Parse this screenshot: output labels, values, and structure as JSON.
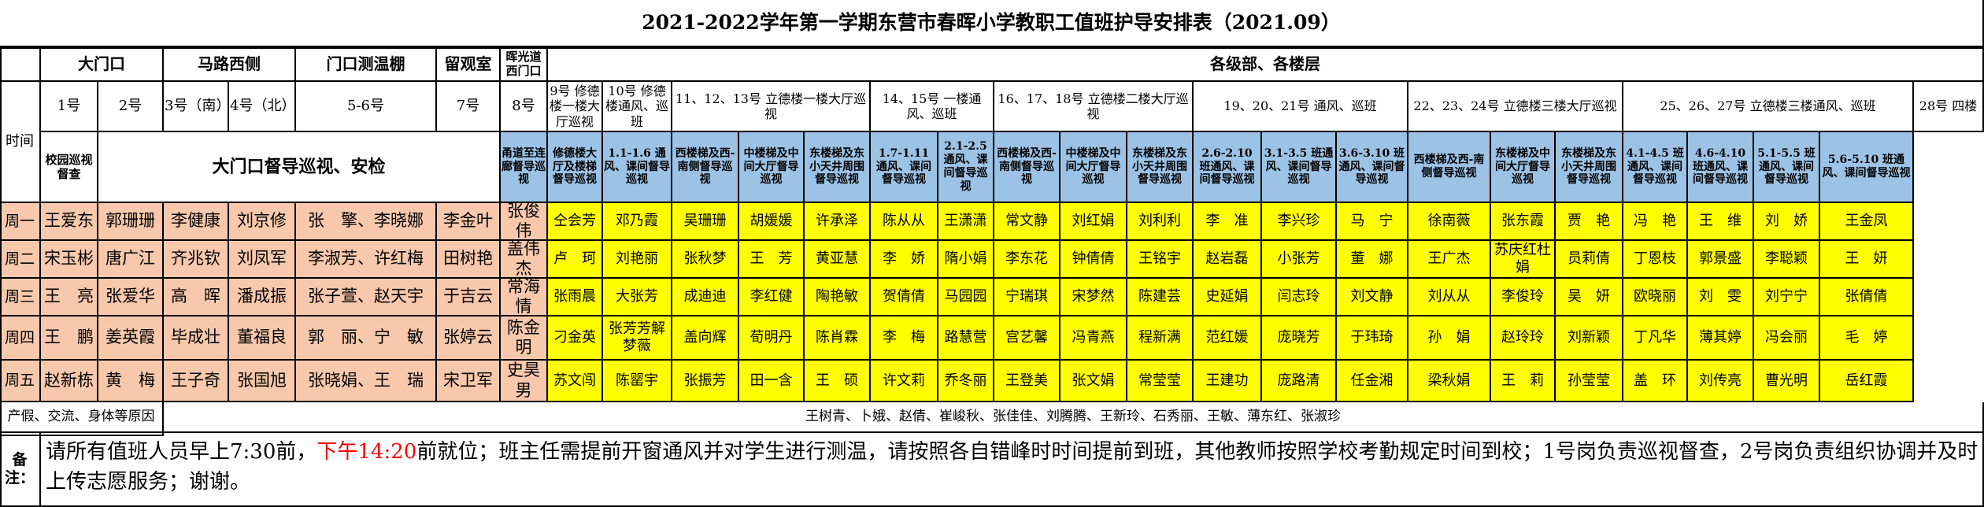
{
  "title": "2021-2022学年第一学期东营市春晖小学教职工值班护导安排表（2021.09）",
  "groups": [
    "大门口",
    "马路西侧",
    "门口测温棚",
    "留观室",
    "晖光道西门口",
    "各级部、各楼层"
  ],
  "time_label": "时间",
  "posts": [
    "1号",
    "2号",
    "3号（南）",
    "4号（北）",
    "5-6号",
    "7号",
    "8号"
  ],
  "floor_posts": [
    "9号 修德楼一楼大厅巡视",
    "10号 修德楼通风、巡班",
    "11、12、13号 立德楼一楼大厅巡视",
    "14、15号 一楼通风、巡班",
    "16、17、18号 立德楼二楼大厅巡视",
    "19、20、21号 通风、巡班",
    "22、23、24号 立德楼三楼大厅巡视",
    "25、26、27号 立德楼三楼通风、巡班",
    "28号 四楼"
  ],
  "duty_row": {
    "post1": "校园巡视督查",
    "gate": "大门口督导巡视、安检",
    "post8": "甬道至连廊督导巡视",
    "items": [
      "修德楼大厅及楼梯督导巡视",
      "1.1-1.6 通风、课间督导巡视",
      "西楼梯及西-南侧督导巡视",
      "中楼梯及中间大厅督导巡视",
      "东楼梯及东小天井周围督导巡视",
      "1.7-1.11 通风、课间督导巡视",
      "2.1-2.5 通风、课间督导巡视",
      "西楼梯及西-南侧督导巡视",
      "中楼梯及中间大厅督导巡视",
      "东楼梯及东小天井周围督导巡视",
      "2.6-2.10 班通风、课间督导巡视",
      "3.1-3.5 班通风、课间督导巡视",
      "3.6-3.10 班通风、课间督导巡视",
      "西楼梯及西-南侧督导巡视",
      "东楼梯及中间大厅督导巡视",
      "东楼梯及东小天井周围督导巡视",
      "4.1-4.5 班通风、课间督导巡视",
      "4.6-4.10 班通风、课间督导巡视",
      "5.1-5.5 班通风、课间督导巡视",
      "5.6-5.10 班通风、课间督导巡视"
    ]
  },
  "days": [
    {
      "day": "周一",
      "names": [
        "王爱东",
        "郭珊珊",
        "李健康",
        "刘京修",
        "张　擎、李晓娜",
        "李金叶",
        "张俊伟",
        "仝会芳",
        "邓乃霞",
        "吴珊珊",
        "胡媛媛",
        "许承泽",
        "陈从从",
        "王潇潇",
        "常文静",
        "刘红娟",
        "刘利利",
        "李　准",
        "李兴珍",
        "马　宁",
        "徐南薇",
        "张东霞",
        "贾　艳",
        "冯　艳",
        "王　维",
        "刘　娇",
        "王金凤"
      ]
    },
    {
      "day": "周二",
      "names": [
        "宋玉彬",
        "唐广江",
        "齐兆钦",
        "刘凤军",
        "李淑芳、许红梅",
        "田树艳",
        "盖伟杰",
        "卢　珂",
        "刘艳丽",
        "张秋梦",
        "王　芳",
        "黄亚慧",
        "李　娇",
        "隋小娟",
        "李东花",
        "钟倩倩",
        "王铭宇",
        "赵岩磊",
        "小张芳",
        "董　娜",
        "王广杰",
        "苏庆红杜娟",
        "员莉倩",
        "丁恩枝",
        "郭景盛",
        "李聪颖",
        "王　妍"
      ]
    },
    {
      "day": "周三",
      "names": [
        "王　亮",
        "张爱华",
        "高　晖",
        "潘成振",
        "张子萱、赵天宇",
        "于吉云",
        "常海情",
        "张雨晨",
        "大张芳",
        "成迪迪",
        "李红健",
        "陶艳敏",
        "贺倩倩",
        "马园园",
        "宁瑞琪",
        "宋梦然",
        "陈建芸",
        "史延娟",
        "闫志玲",
        "刘文静",
        "刘从从",
        "李俊玲",
        "吴　妍",
        "欧晓丽",
        "刘　雯",
        "刘宁宁",
        "张倩倩"
      ]
    },
    {
      "day": "周四",
      "names": [
        "王　鹏",
        "姜英霞",
        "毕成壮",
        "董福良",
        "郭　丽、宁　敏",
        "张婷云",
        "陈金明",
        "刁金英",
        "张芳芳解梦薇",
        "盖向辉",
        "荀明丹",
        "陈肖霖",
        "李　梅",
        "路慧营",
        "宫艺馨",
        "冯青燕",
        "程新满",
        "范红媛",
        "庞晓芳",
        "于玮琦",
        "孙　娟",
        "赵玲玲",
        "刘新颖",
        "丁凡华",
        "薄其婷",
        "冯会丽",
        "毛　婷"
      ]
    },
    {
      "day": "周五",
      "names": [
        "赵新栋",
        "黄　梅",
        "王子奇",
        "张国旭",
        "张晓娟、王　瑞",
        "宋卫军",
        "史昊男",
        "苏文闯",
        "陈罂宇",
        "张振芳",
        "田一含",
        "王　硕",
        "许文莉",
        "乔冬丽",
        "王登美",
        "张文娟",
        "常莹莹",
        "王建功",
        "庞路清",
        "任金湘",
        "梁秋娟",
        "王　莉",
        "孙莹莹",
        "盖　环",
        "刘传亮",
        "曹光明",
        "岳红霞"
      ]
    }
  ],
  "leave": {
    "label": "产假、交流、身体等原因",
    "names": "王树青、卜娥、赵倩、崔峻秋、张佳佳、刘腾腾、王新玲、石秀丽、王敏、薄东红、张淑珍"
  },
  "note": {
    "label": "备注：",
    "before": "请所有值班人员早上7:30前，",
    "highlight": "下午14:20",
    "after": "前就位；班主任需提前开窗通风并对学生进行测温，请按照各自错峰时时间提前到班，其他教师按照学校考勤规定时间到校；1号岗负责巡视督查，2号岗负责组织协调并及时上传志愿服务；谢谢。"
  },
  "colors": {
    "gate": "#f7c8ac",
    "floor": "#ffff00",
    "header_blue": "#9cc2e5",
    "note_red": "#ff0000"
  }
}
